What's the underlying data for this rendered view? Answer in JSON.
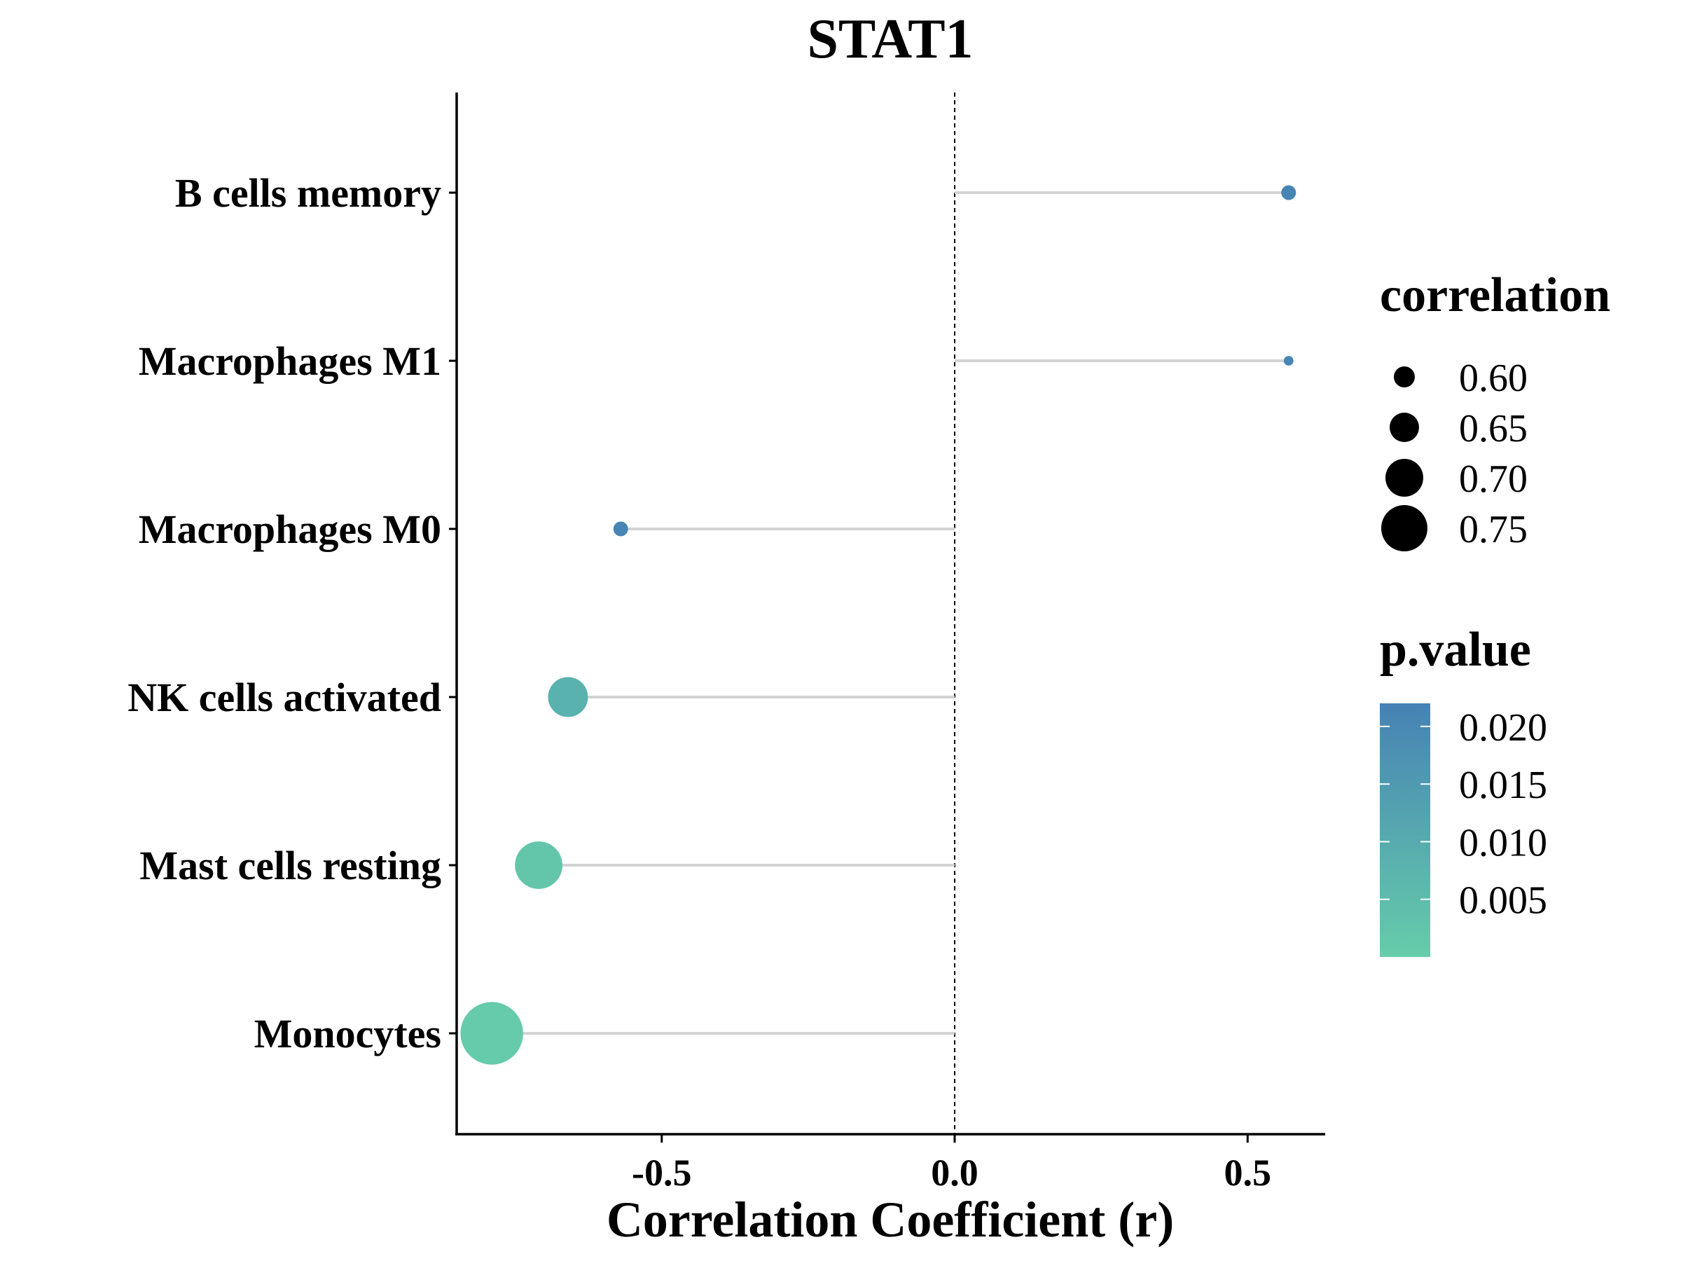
{
  "chart_data": {
    "type": "scatter",
    "subtype": "lollipop",
    "title": "STAT1",
    "xlabel": "Correlation Coefficient (r)",
    "ylabel": "",
    "xlim": [
      -0.85,
      0.63
    ],
    "x_ticks": [
      "-0.5",
      "0.0",
      "0.5"
    ],
    "x_tick_values": [
      -0.5,
      0.0,
      0.5
    ],
    "reference_line_x": 0.0,
    "grid": false,
    "categories": [
      "B cells memory",
      "Macrophages M1",
      "Macrophages M0",
      "NK cells activated",
      "Mast cells resting",
      "Monocytes"
    ],
    "points": [
      {
        "label": "B cells memory",
        "r": 0.57,
        "correlation": 0.6,
        "p_value": 0.021
      },
      {
        "label": "Macrophages M1",
        "r": 0.57,
        "correlation": 0.58,
        "p_value": 0.021
      },
      {
        "label": "Macrophages M0",
        "r": -0.57,
        "correlation": 0.6,
        "p_value": 0.021
      },
      {
        "label": "NK cells activated",
        "r": -0.66,
        "correlation": 0.7,
        "p_value": 0.008
      },
      {
        "label": "Mast cells resting",
        "r": -0.71,
        "correlation": 0.73,
        "p_value": 0.002
      },
      {
        "label": "Monocytes",
        "r": -0.79,
        "correlation": 0.79,
        "p_value": 0.0005
      }
    ],
    "legend_size": {
      "title": "correlation",
      "values": [
        0.6,
        0.65,
        0.7,
        0.75
      ],
      "labels": [
        "0.60",
        "0.65",
        "0.70",
        "0.75"
      ]
    },
    "legend_color": {
      "title": "p.value",
      "range": [
        0.0,
        0.022
      ],
      "ticks": [
        0.02,
        0.015,
        0.01,
        0.005
      ],
      "labels": [
        "0.020",
        "0.015",
        "0.010",
        "0.005"
      ],
      "color_low": "#66CDAA",
      "color_high": "#4682B4"
    },
    "legend_position": "right",
    "segment_color": "#d3d3d3"
  }
}
